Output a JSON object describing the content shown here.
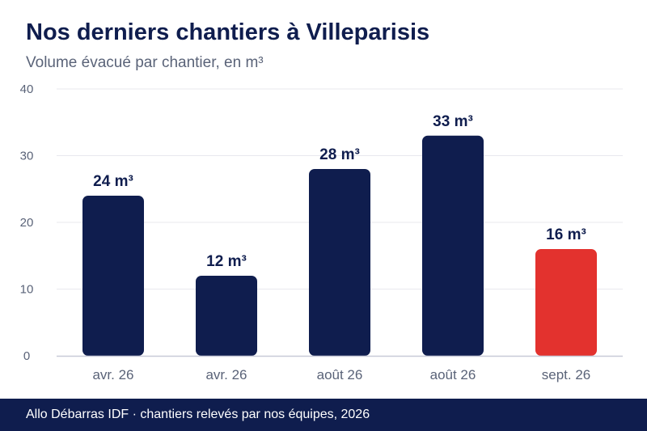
{
  "title": "Nos derniers chantiers à Villeparisis",
  "subtitle": "Volume évacué par chantier, en m³",
  "footer": "Allo Débarras IDF · chantiers relevés par nos équipes, 2026",
  "colors": {
    "primary": "#0f1d4e",
    "highlight": "#e3322e",
    "grid": "#e8e8ee",
    "axis": "#c8cad8",
    "tick_text": "#5a6378"
  },
  "chart_data": {
    "type": "bar",
    "categories": [
      "avr. 26",
      "avr. 26",
      "août 26",
      "août 26",
      "sept. 26"
    ],
    "values": [
      24,
      12,
      28,
      33,
      16
    ],
    "value_labels": [
      "24 m³",
      "12 m³",
      "28 m³",
      "33 m³",
      "16 m³"
    ],
    "highlight_index": 4,
    "ylim": [
      0,
      40
    ],
    "yticks": [
      0,
      10,
      20,
      30,
      40
    ],
    "ytick_labels": [
      "0",
      "10",
      "20",
      "30",
      "40"
    ],
    "grid": true,
    "xlabel": "",
    "ylabel": ""
  }
}
